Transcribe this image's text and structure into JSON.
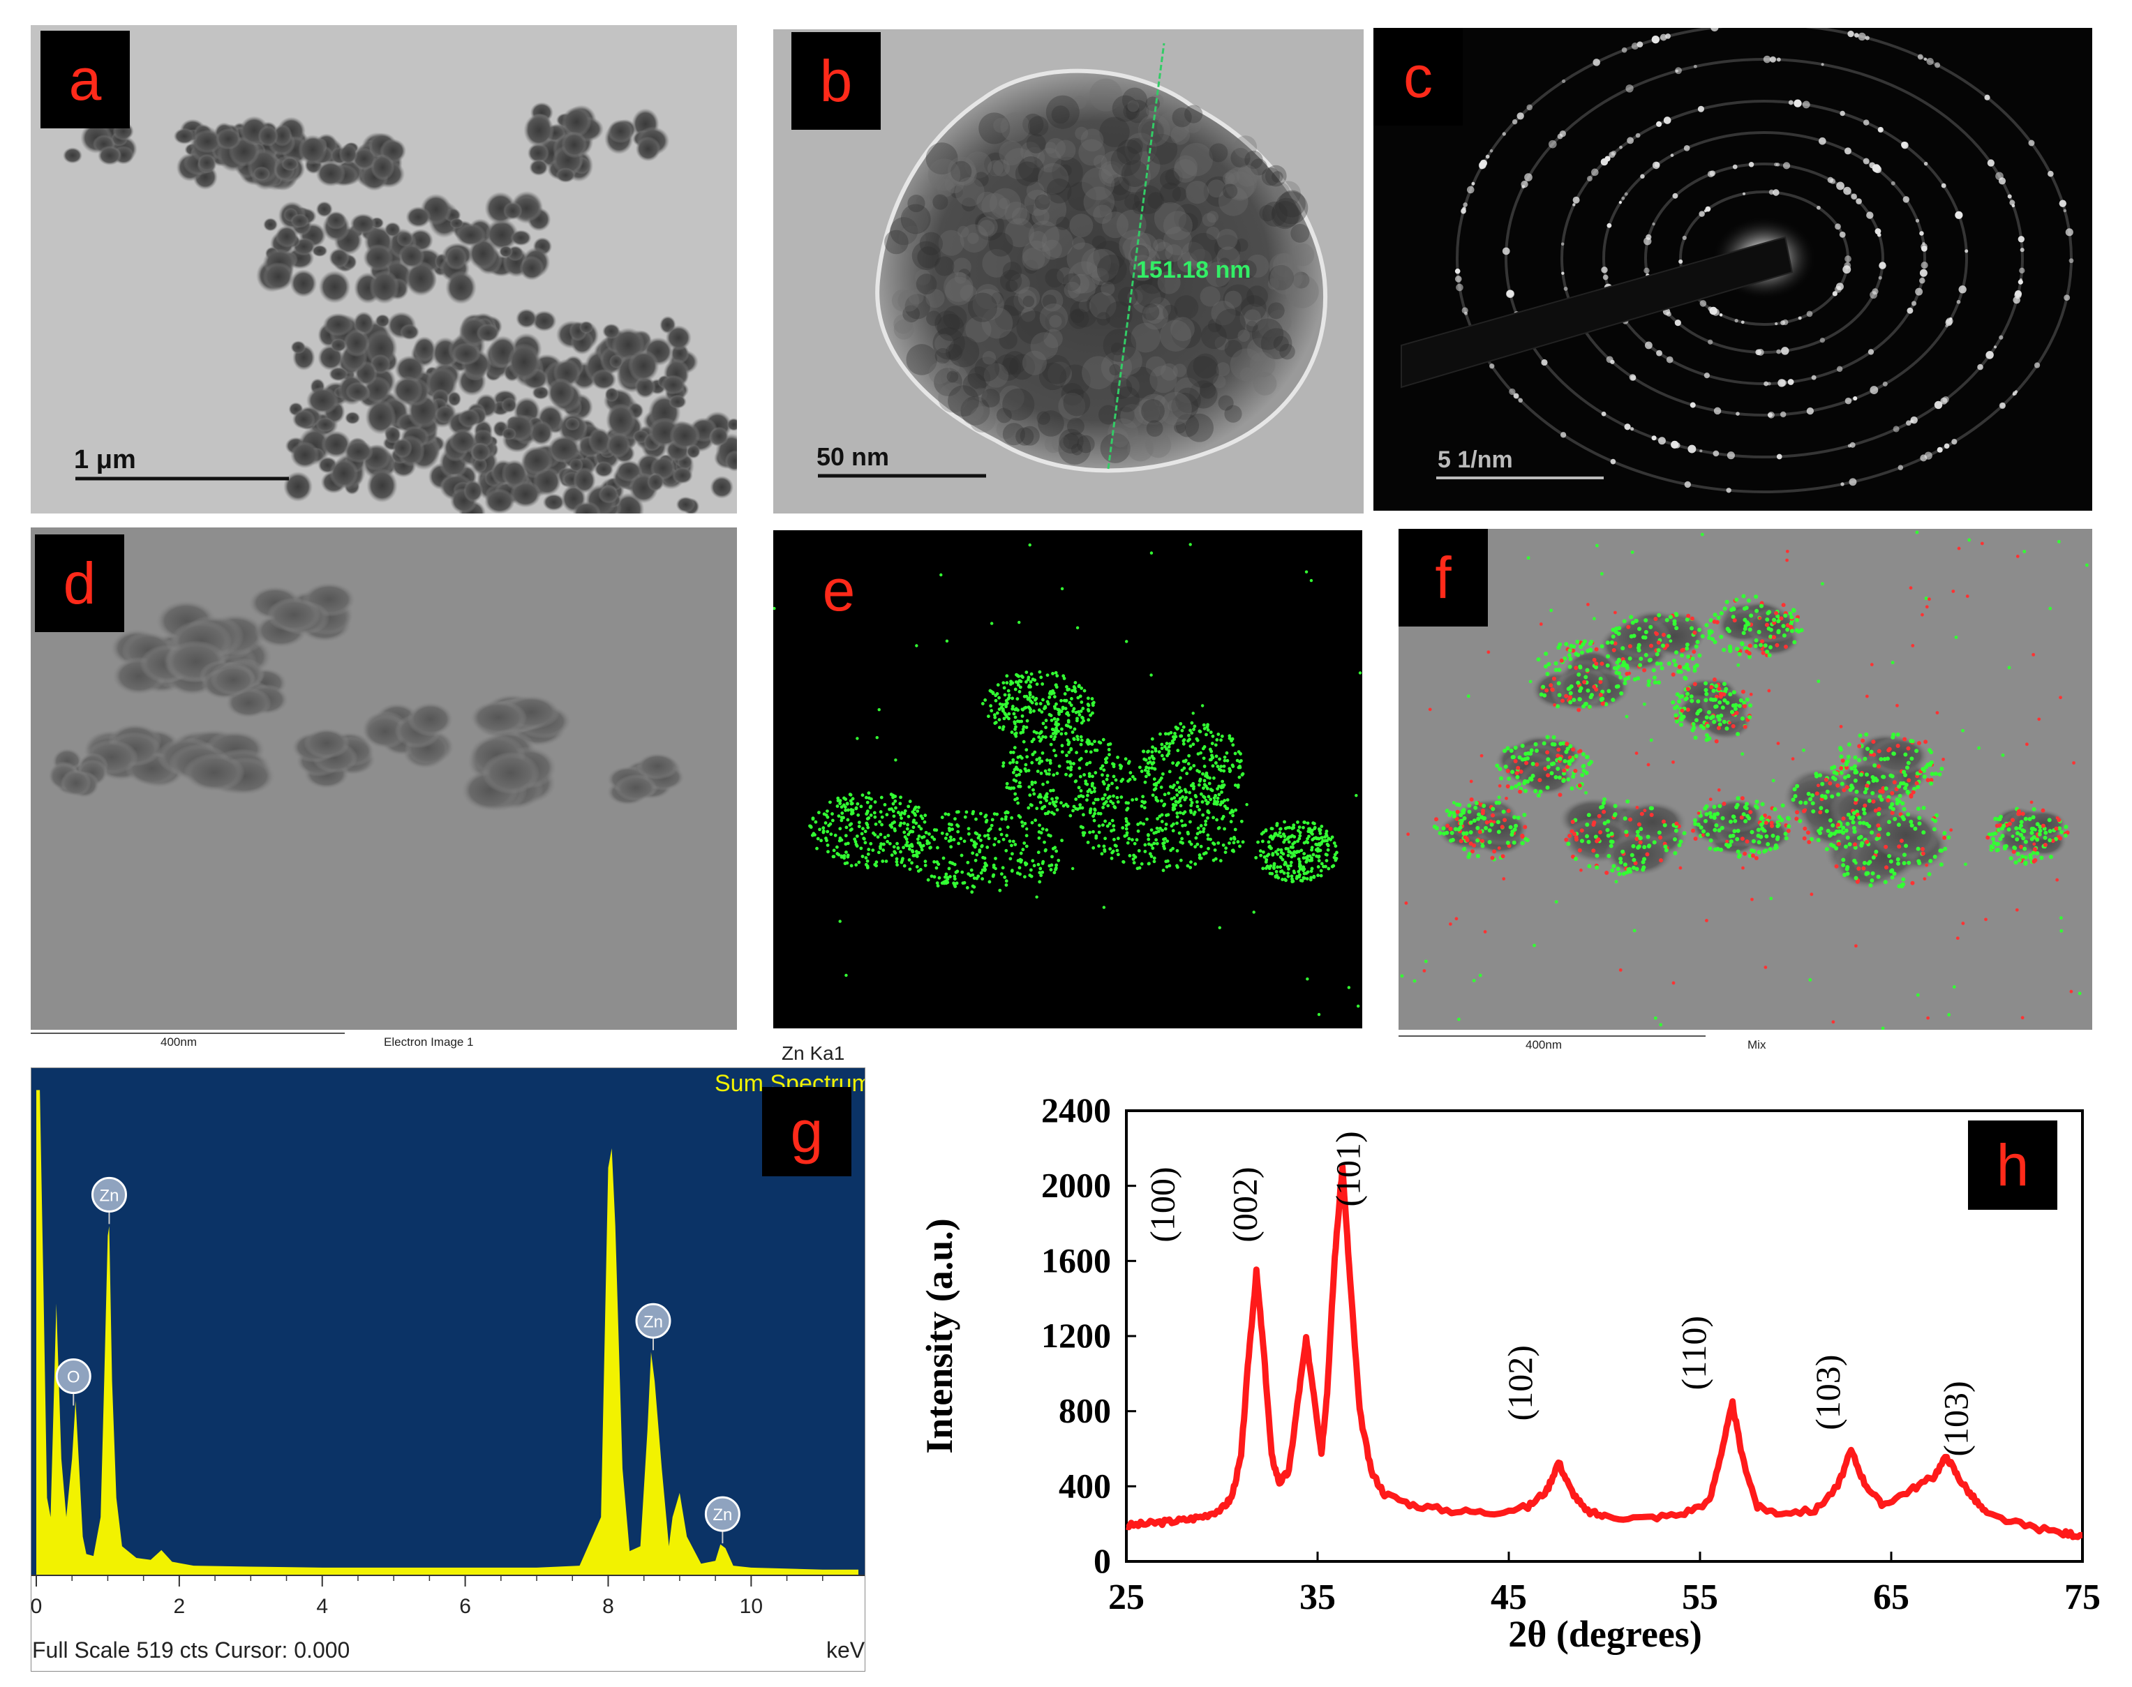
{
  "panels": {
    "a": {
      "label": "a",
      "scale": "1 μm"
    },
    "b": {
      "label": "b",
      "scale": "50 nm",
      "measure": "151.18 nm"
    },
    "c": {
      "label": "c",
      "scale": "5 1/nm"
    },
    "d": {
      "label": "d",
      "scale": "400nm",
      "caption": "Electron Image 1"
    },
    "e": {
      "label": "e",
      "caption": "Zn Ka1"
    },
    "f": {
      "label": "f",
      "scale": "400nm",
      "caption": "Mix"
    },
    "g": {
      "label": "g"
    },
    "h": {
      "label": "h"
    }
  },
  "colors": {
    "label_text": "#ff2a1a",
    "eds_bg": "#0b3366",
    "eds_spectrum": "#f2f200",
    "xrd_line": "#ff1a1a",
    "map_green": "#33ff33",
    "map_red": "#ff3333"
  },
  "chart_data": [
    {
      "type": "area",
      "panel": "g",
      "title": "Sum Spectrum",
      "xlabel": "keV",
      "footer": "Full Scale 519 cts Cursor: 0.000",
      "xlim": [
        0,
        11.5
      ],
      "ylim": [
        0,
        519
      ],
      "xticks": [
        0,
        2,
        4,
        6,
        8,
        10
      ],
      "x": [
        0.0,
        0.05,
        0.1,
        0.15,
        0.2,
        0.28,
        0.35,
        0.42,
        0.5,
        0.55,
        0.6,
        0.65,
        0.7,
        0.8,
        0.9,
        0.95,
        1.0,
        1.02,
        1.06,
        1.12,
        1.2,
        1.4,
        1.6,
        1.75,
        1.9,
        2.2,
        3.0,
        4.0,
        5.0,
        6.0,
        7.0,
        7.6,
        7.9,
        8.0,
        8.05,
        8.1,
        8.2,
        8.3,
        8.45,
        8.55,
        8.6,
        8.65,
        8.75,
        8.85,
        8.9,
        9.0,
        9.1,
        9.3,
        9.5,
        9.57,
        9.64,
        9.75,
        10.0,
        11.0,
        11.5
      ],
      "values": [
        500,
        500,
        300,
        80,
        60,
        280,
        120,
        60,
        120,
        180,
        110,
        40,
        22,
        20,
        60,
        200,
        350,
        360,
        200,
        80,
        30,
        18,
        16,
        26,
        14,
        10,
        9,
        8,
        8,
        8,
        8,
        10,
        60,
        420,
        440,
        360,
        110,
        25,
        30,
        150,
        230,
        200,
        110,
        30,
        60,
        85,
        40,
        12,
        15,
        32,
        28,
        10,
        8,
        6,
        6
      ],
      "peak_labels": [
        {
          "element": "O",
          "x": 0.52,
          "y": 175
        },
        {
          "element": "Zn",
          "x": 1.02,
          "y": 362
        },
        {
          "element": "Zn",
          "x": 8.63,
          "y": 232
        },
        {
          "element": "Zn",
          "x": 9.6,
          "y": 33
        }
      ]
    },
    {
      "type": "line",
      "panel": "h",
      "xlabel": "2θ (degrees)",
      "ylabel": "Intensity (a.u.)",
      "xlim": [
        25,
        75
      ],
      "ylim": [
        0,
        2400
      ],
      "xticks": [
        25,
        35,
        45,
        55,
        65,
        75
      ],
      "yticks": [
        0,
        400,
        800,
        1200,
        1600,
        2000,
        2400
      ],
      "x": [
        25,
        26,
        27,
        28,
        29,
        30,
        30.5,
        31,
        31.4,
        31.8,
        32.2,
        32.6,
        33,
        33.5,
        34,
        34.4,
        34.8,
        35.2,
        35.5,
        35.9,
        36.3,
        36.7,
        37.2,
        37.8,
        38.5,
        40,
        42,
        44,
        46,
        47,
        47.6,
        48.2,
        49,
        50,
        52,
        54,
        55.5,
        56.2,
        56.7,
        57.2,
        58,
        59,
        61,
        62.2,
        62.9,
        63.6,
        64.5,
        66,
        67.2,
        67.9,
        68.5,
        69.2,
        70,
        72,
        74,
        75
      ],
      "values": [
        190,
        200,
        210,
        220,
        240,
        280,
        340,
        560,
        1100,
        1540,
        1100,
        560,
        420,
        480,
        880,
        1180,
        900,
        580,
        900,
        1620,
        2100,
        1500,
        800,
        480,
        360,
        300,
        270,
        260,
        290,
        380,
        530,
        390,
        270,
        240,
        230,
        250,
        320,
        620,
        840,
        560,
        290,
        260,
        270,
        400,
        590,
        420,
        300,
        380,
        450,
        560,
        450,
        350,
        250,
        190,
        150,
        140
      ],
      "peak_labels": [
        {
          "text": "(100)",
          "x": 27.5,
          "y": 1900
        },
        {
          "text": "(002)",
          "x": 31.8,
          "y": 1900
        },
        {
          "text": "(101)",
          "x": 37.2,
          "y": 2090
        },
        {
          "text": "(102)",
          "x": 46.2,
          "y": 950
        },
        {
          "text": "(110)",
          "x": 55.3,
          "y": 1110
        },
        {
          "text": "(103)",
          "x": 62.3,
          "y": 900
        },
        {
          "text": "(103)",
          "x": 69.0,
          "y": 760
        }
      ]
    }
  ]
}
